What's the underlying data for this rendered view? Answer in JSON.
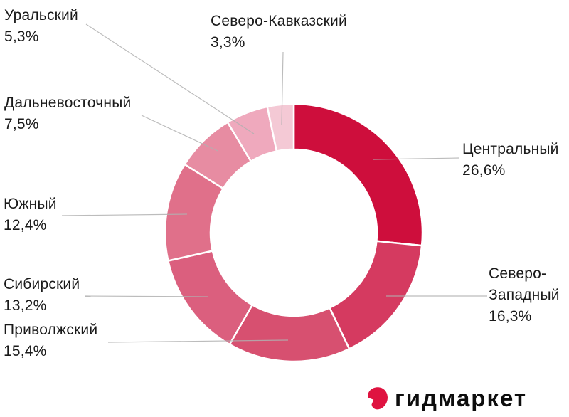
{
  "chart_data": {
    "type": "pie",
    "subtype": "donut",
    "title": "",
    "unit": "%",
    "direction": "clockwise",
    "start_angle_deg": 0,
    "legend_position": "callouts",
    "segments": [
      {
        "id": "central",
        "label": "Центральный",
        "value": 26.6,
        "display_value": "26,6%",
        "color": "#ce0e3c"
      },
      {
        "id": "north-west",
        "label": "Северо-Западный",
        "value": 16.3,
        "display_value": "16,3%",
        "color": "#d53a60"
      },
      {
        "id": "volga",
        "label": "Приволжский",
        "value": 15.4,
        "display_value": "15,4%",
        "color": "#d75070"
      },
      {
        "id": "siberia",
        "label": "Сибирский",
        "value": 13.2,
        "display_value": "13,2%",
        "color": "#db5f7e"
      },
      {
        "id": "south",
        "label": "Южный",
        "value": 12.4,
        "display_value": "12,4%",
        "color": "#e0708a"
      },
      {
        "id": "far-east",
        "label": "Дальневосточный",
        "value": 7.5,
        "display_value": "7,5%",
        "color": "#e78ca2"
      },
      {
        "id": "ural",
        "label": "Уральский",
        "value": 5.3,
        "display_value": "5,3%",
        "color": "#efa9bd"
      },
      {
        "id": "north-caucasus",
        "label": "Северо-Кавказский",
        "value": 3.3,
        "display_value": "3,3%",
        "color": "#f4c9d5"
      }
    ]
  },
  "styles": {
    "label_color": "#1a1a1a",
    "leader_line_color": "#b0b0b0",
    "segment_divider_color": "#ffffff",
    "background": "#ffffff"
  },
  "logo": {
    "text": "гидмаркет",
    "icon": "gidmarket-mark-icon",
    "icon_color": "#df1340",
    "text_color": "#0d0d0d"
  }
}
